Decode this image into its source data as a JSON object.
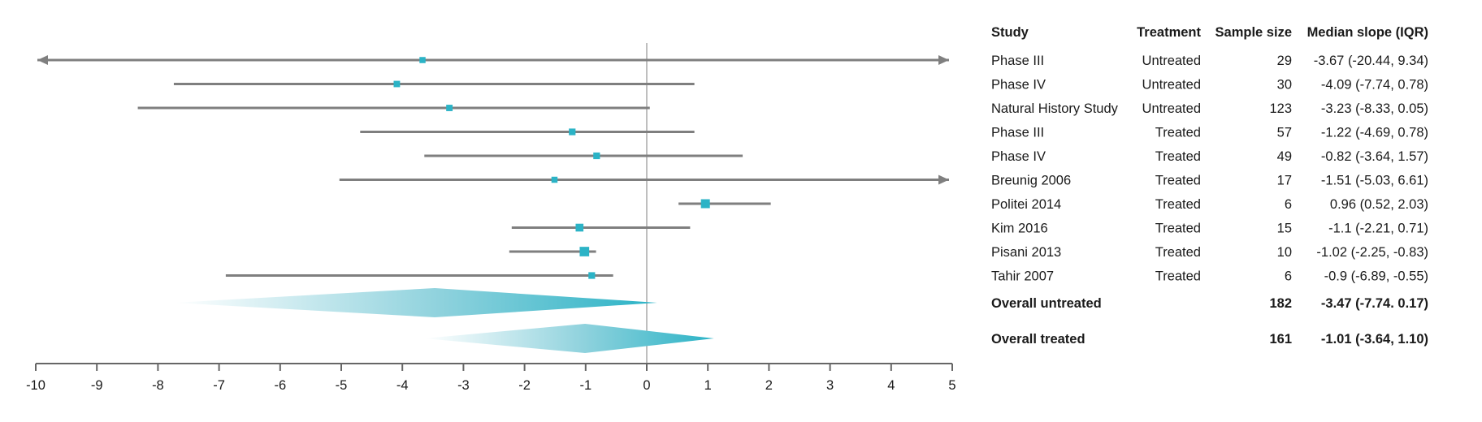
{
  "chart_data": {
    "type": "forest",
    "title": "",
    "xlabel": "",
    "ylabel": "",
    "xlim": [
      -10,
      5
    ],
    "xticks": [
      -10,
      -9,
      -8,
      -7,
      -6,
      -5,
      -4,
      -3,
      -2,
      -1,
      0,
      1,
      2,
      3,
      4,
      5
    ],
    "reference_line": 0,
    "colors": {
      "marker": "#2bb3c6",
      "ci_line": "#7f7f7f",
      "axis": "#666666",
      "ref_line": "#bfbfbf"
    },
    "columns": [
      "Study",
      "Treatment",
      "Sample size",
      "Median slope (IQR)"
    ],
    "rows": [
      {
        "study": "Phase III",
        "treatment": "Untreated",
        "n": "29",
        "label": "-3.67 (-20.44, 9.34)",
        "median": -3.67,
        "low": -20.44,
        "high": 9.34,
        "weight": 0.5
      },
      {
        "study": "Phase IV",
        "treatment": "Untreated",
        "n": "30",
        "label": "-4.09 (-7.74, 0.78)",
        "median": -4.09,
        "low": -7.74,
        "high": 0.78,
        "weight": 0.55
      },
      {
        "study": "Natural History Study",
        "treatment": "Untreated",
        "n": "123",
        "label": "-3.23 (-8.33, 0.05)",
        "median": -3.23,
        "low": -8.33,
        "high": 0.05,
        "weight": 0.55
      },
      {
        "study": "Phase III",
        "treatment": "Treated",
        "n": "57",
        "label": "-1.22 (-4.69, 0.78)",
        "median": -1.22,
        "low": -4.69,
        "high": 0.78,
        "weight": 0.6
      },
      {
        "study": "Phase IV",
        "treatment": "Treated",
        "n": "49",
        "label": "-0.82 (-3.64, 1.57)",
        "median": -0.82,
        "low": -3.64,
        "high": 1.57,
        "weight": 0.6
      },
      {
        "study": "Breunig 2006",
        "treatment": "Treated",
        "n": "17",
        "label": "-1.51 (-5.03, 6.61)",
        "median": -1.51,
        "low": -5.03,
        "high": 6.61,
        "weight": 0.5
      },
      {
        "study": "Politei 2014",
        "treatment": "Treated",
        "n": "6",
        "label": "0.96 (0.52, 2.03)",
        "median": 0.96,
        "low": 0.52,
        "high": 2.03,
        "weight": 1.0
      },
      {
        "study": "Kim 2016",
        "treatment": "Treated",
        "n": "15",
        "label": "-1.1 (-2.21, 0.71)",
        "median": -1.1,
        "low": -2.21,
        "high": 0.71,
        "weight": 0.8
      },
      {
        "study": "Pisani 2013",
        "treatment": "Treated",
        "n": "10",
        "label": "-1.02 (-2.25, -0.83)",
        "median": -1.02,
        "low": -2.25,
        "high": -0.83,
        "weight": 1.1
      },
      {
        "study": "Tahir 2007",
        "treatment": "Treated",
        "n": "6",
        "label": "-0.9 (-6.89, -0.55)",
        "median": -0.9,
        "low": -6.89,
        "high": -0.55,
        "weight": 0.6
      }
    ],
    "summaries": [
      {
        "study": "Overall untreated",
        "n": "182",
        "label": "-3.47 (-7.74. 0.17)",
        "median": -3.47,
        "low": -7.74,
        "high": 0.17
      },
      {
        "study": "Overall treated",
        "n": "161",
        "label": "-1.01 (-3.64, 1.10)",
        "median": -1.01,
        "low": -3.64,
        "high": 1.1
      }
    ]
  }
}
